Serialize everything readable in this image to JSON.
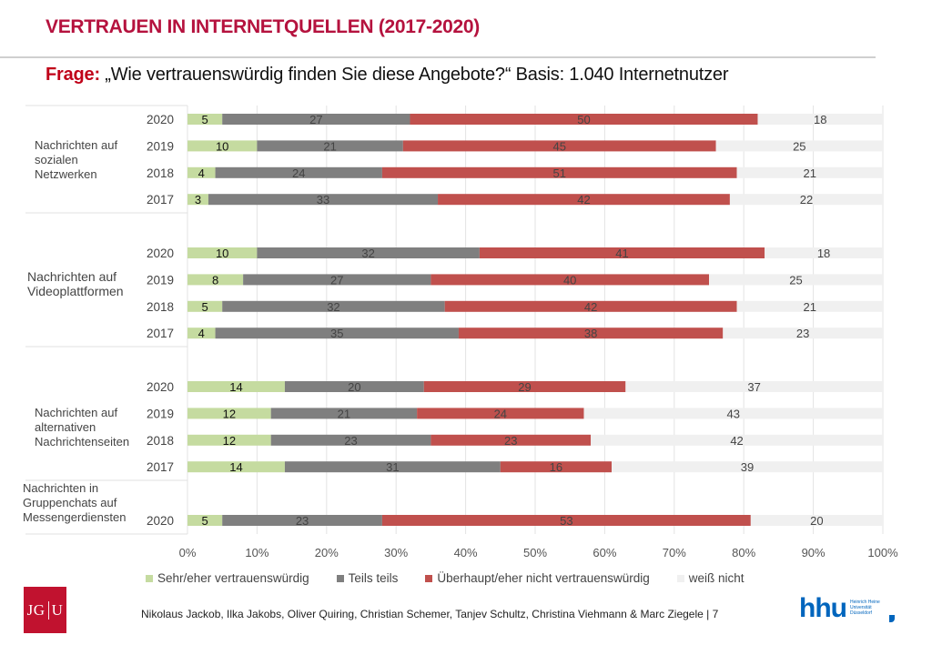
{
  "header": {
    "title": "VERTRAUEN IN INTERNETQUELLEN (2017-2020)",
    "question_label": "Frage:",
    "question_text": " „Wie vertrauenswürdig finden Sie diese Angebote?“ Basis: 1.040 Internetnutzer"
  },
  "colors": {
    "title": "#b5123e",
    "trustworthy": "#c5dba0",
    "partly": "#7f7f7f",
    "not_trustworthy": "#c0504d",
    "dont_know": "#f0f0f0"
  },
  "chart_data": {
    "type": "bar",
    "orientation": "horizontal",
    "stacked": "percent",
    "title": "VERTRAUEN IN INTERNETQUELLEN (2017-2020)",
    "subtitle": "Frage: „Wie vertrauenswürdig finden Sie diese Angebote?“ Basis: 1.040 Internetnutzer",
    "xlabel": "",
    "ylabel": "",
    "xlim": [
      0,
      100
    ],
    "xticks": [
      "0%",
      "10%",
      "20%",
      "30%",
      "40%",
      "50%",
      "60%",
      "70%",
      "80%",
      "90%",
      "100%"
    ],
    "grid": true,
    "legend_position": "bottom",
    "series_names": [
      "Sehr/eher vertrauenswürdig",
      "Teils teils",
      "Überhaupt/eher nicht vertrauenswürdig",
      "weiß nicht"
    ],
    "groups": [
      {
        "label": "Nachrichten auf sozialen Netzwerken",
        "label_lines": [
          "Nachrichten auf",
          "sozialen",
          "Netzwerken"
        ],
        "rows": [
          {
            "year": "2020",
            "values": [
              5,
              27,
              50,
              18
            ]
          },
          {
            "year": "2019",
            "values": [
              10,
              21,
              45,
              25
            ]
          },
          {
            "year": "2018",
            "values": [
              4,
              24,
              51,
              21
            ]
          },
          {
            "year": "2017",
            "values": [
              3,
              33,
              42,
              22
            ]
          }
        ]
      },
      {
        "label": "Nachrichten auf Videoplattformen",
        "label_lines": [
          "Nachrichten auf",
          "Videoplattformen"
        ],
        "rows": [
          {
            "year": "2020",
            "values": [
              10,
              32,
              41,
              18
            ]
          },
          {
            "year": "2019",
            "values": [
              8,
              27,
              40,
              25
            ]
          },
          {
            "year": "2018",
            "values": [
              5,
              32,
              42,
              21
            ]
          },
          {
            "year": "2017",
            "values": [
              4,
              35,
              38,
              23
            ]
          }
        ]
      },
      {
        "label": "Nachrichten auf alternativen Nachrichtenseiten",
        "label_lines": [
          "Nachrichten auf",
          "alternativen",
          "Nachrichtenseiten"
        ],
        "rows": [
          {
            "year": "2020",
            "values": [
              14,
              20,
              29,
              37
            ]
          },
          {
            "year": "2019",
            "values": [
              12,
              21,
              24,
              43
            ]
          },
          {
            "year": "2018",
            "values": [
              12,
              23,
              23,
              42
            ]
          },
          {
            "year": "2017",
            "values": [
              14,
              31,
              16,
              39
            ]
          }
        ]
      },
      {
        "label": "Nachrichten in Gruppenchats auf Messengerdiensten",
        "label_lines": [
          "Nachrichten in",
          "Gruppenchats auf",
          "Messengerdiensten"
        ],
        "rows": [
          {
            "year": "2020",
            "values": [
              5,
              23,
              53,
              20
            ]
          }
        ]
      }
    ]
  },
  "legend": [
    {
      "label": "Sehr/eher vertrauenswürdig",
      "color": "#c5dba0"
    },
    {
      "label": "Teils teils",
      "color": "#7f7f7f"
    },
    {
      "label": "Überhaupt/eher nicht vertrauenswürdig",
      "color": "#c0504d"
    },
    {
      "label": "weiß nicht",
      "color": "#f0f0f0"
    }
  ],
  "footer": {
    "authors": "Nikolaus Jackob, Ilka Jakobs, Oliver Quiring, Christian Schemer, Tanjev Schultz, Christina Viehmann & Marc Ziegele | 7",
    "logo_left": {
      "left": "JG",
      "right": "U"
    },
    "logo_right": {
      "mark": "hhu",
      "sub": [
        "Heinrich Heine",
        "Universität",
        "Düsseldorf"
      ]
    }
  }
}
